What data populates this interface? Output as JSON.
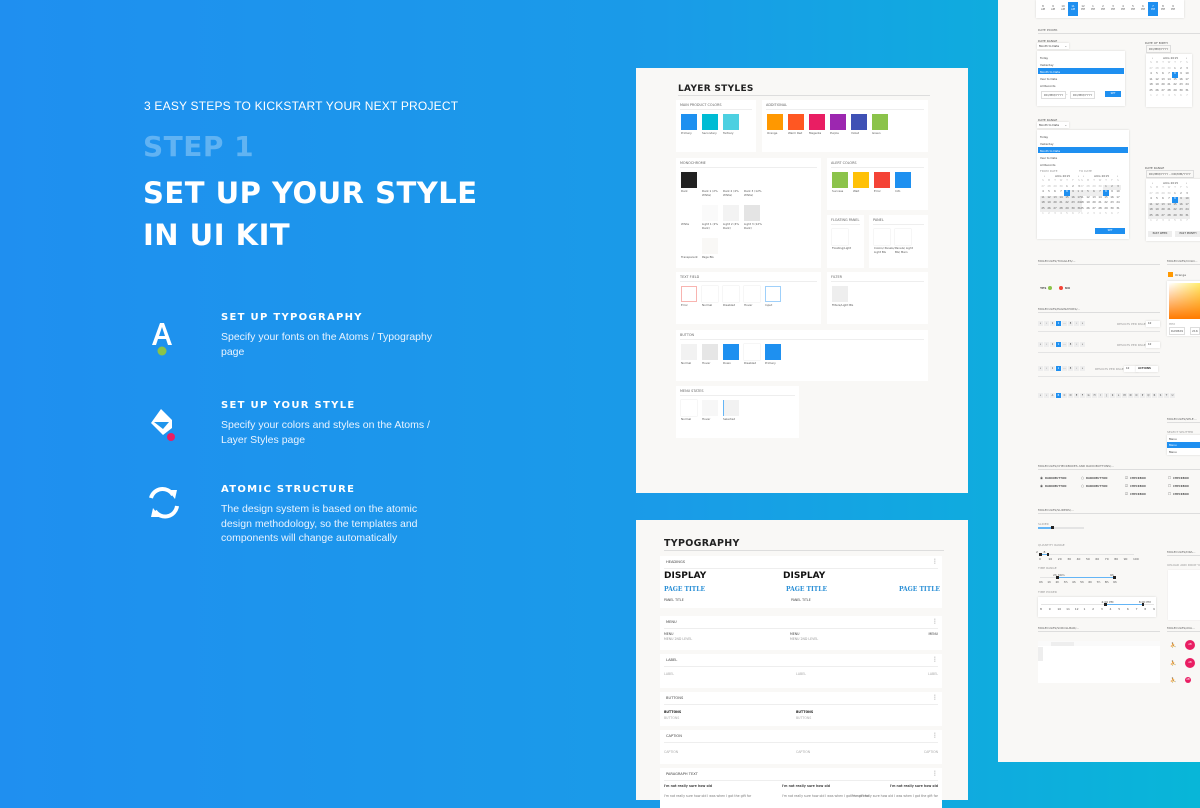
{
  "hero": {
    "tagline": "3 EASY STEPS TO KICKSTART YOUR NEXT PROJECT",
    "step": "STEP 1",
    "title_line1": "SET UP YOUR STYLE",
    "title_line2": "IN UI KIT"
  },
  "features": [
    {
      "icon": "typography-letter-icon",
      "title": "SET UP TYPOGRAPHY",
      "description": "Specify your fonts on the Atoms / Typography page",
      "dot_color": "#8BC34A"
    },
    {
      "icon": "paint-bucket-icon",
      "title": "SET UP YOUR STYLE",
      "description": "Specify your colors and styles on the Atoms / Layer Styles page",
      "dot_color": "#E91E63"
    },
    {
      "icon": "sync-arrows-icon",
      "title": "ATOMIC STRUCTURE",
      "description": "The design system is based on the atomic design methodology, so the templates and components will change automatically"
    }
  ],
  "layer_styles": {
    "title": "LAYER STYLES",
    "main_product": {
      "title": "MAIN PRODUCT COLORS",
      "swatches": [
        {
          "label": "Primary",
          "color": "#1E90F0"
        },
        {
          "label": "Secondary",
          "color": "#00BCD4"
        },
        {
          "label": "Tertiary",
          "color": "#4DD0E1"
        }
      ]
    },
    "additional": {
      "title": "ADDITIONAL",
      "swatches": [
        {
          "label": "Orange",
          "color": "#FF9800"
        },
        {
          "label": "Warm Red",
          "color": "#FF5722"
        },
        {
          "label": "Magenta",
          "color": "#E91E63"
        },
        {
          "label": "Purple",
          "color": "#9C27B0"
        },
        {
          "label": "Violet",
          "color": "#3F51B5"
        },
        {
          "label": "Green",
          "color": "#8BC34A"
        }
      ]
    },
    "monochrome": {
      "title": "MONOCHROME",
      "swatches": [
        {
          "label": "Dark",
          "color": "#222222"
        },
        {
          "label": "Dark 1 (2% White)",
          "color": "#ffffff"
        },
        {
          "label": "Dark 2 (4% White)",
          "color": "#ffffff"
        },
        {
          "label": "Dark 3 (12% White)",
          "color": "#ffffff"
        },
        {
          "label": "White",
          "color": "#ffffff"
        },
        {
          "label": "Light 1 (2% Dark)",
          "color": "#FAFAFA"
        },
        {
          "label": "Light 2 (4% Dark)",
          "color": "#F3F3F3"
        },
        {
          "label": "Light 3 (12% Dark)",
          "color": "#E4E4E4"
        },
        {
          "label": "Transparent",
          "color": "#ffffff"
        },
        {
          "label": "Page BG",
          "color": "#F9F8F6"
        }
      ]
    },
    "alert": {
      "title": "ALERT COLORS",
      "swatches": [
        {
          "label": "Success",
          "color": "#8BC34A"
        },
        {
          "label": "Wait",
          "color": "#FFC107"
        },
        {
          "label": "Error",
          "color": "#F44336"
        },
        {
          "label": "Info",
          "color": "#1E90F0"
        }
      ]
    },
    "floating_panel": {
      "title": "FLOATING PANEL",
      "swatches": [
        {
          "label": "Floating/Light",
          "color": "#ffffff"
        }
      ]
    },
    "panel": {
      "title": "PANEL",
      "swatches": [
        {
          "label": "Colors/ Panels/ Light BG",
          "color": "#ffffff"
        },
        {
          "label": "Panels/ Light BG/ Main",
          "color": "#ffffff"
        }
      ]
    },
    "text_field": {
      "title": "TEXT FIELD",
      "swatches": [
        {
          "label": "Error",
          "color": "#ffffff",
          "border": "#F8B4B0"
        },
        {
          "label": "Normal",
          "color": "#ffffff"
        },
        {
          "label": "Disabled",
          "color": "#ffffff"
        },
        {
          "label": "Hover",
          "color": "#ffffff"
        },
        {
          "label": "Input",
          "color": "#ffffff",
          "border": "#9FD0FA"
        }
      ]
    },
    "filter": {
      "title": "FILTER",
      "swatches": [
        {
          "label": "Filters/Light BG",
          "color": "#EEEEEE"
        }
      ]
    },
    "button": {
      "title": "BUTTON",
      "swatches": [
        {
          "label": "Normal",
          "color": "#F2F2F2"
        },
        {
          "label": "Hover",
          "color": "#E6E6E6"
        },
        {
          "label": "Down",
          "color": "#1E90F0"
        },
        {
          "label": "Disabled",
          "color": "#ffffff"
        },
        {
          "label": "Primary",
          "color": "#1E90F0"
        }
      ]
    },
    "menu_states": {
      "title": "MENU STATES",
      "swatches": [
        {
          "label": "Normal",
          "color": "#ffffff"
        },
        {
          "label": "Hover",
          "color": "#F7F7F7"
        },
        {
          "label": "Selected",
          "color": "#F2F2F2",
          "border_left": "#64B5F6"
        }
      ]
    }
  },
  "typography": {
    "title": "TYPOGRAPHY",
    "headings": {
      "title": "HEADINGS",
      "display": "DISPLAY",
      "page_title": "PAGE TITLE",
      "panel_title": "PANEL TITLE"
    },
    "menu": {
      "title": "MENU",
      "item": "MENU",
      "second": "MENU 2ND LEVEL"
    },
    "label": {
      "title": "LABEL",
      "item": "LABEL"
    },
    "buttons": {
      "title": "BUTTONS",
      "item": "BUTTONS"
    },
    "caption": {
      "title": "CAPTION",
      "item": "CAPTION"
    },
    "paragraph": {
      "title": "PARAGRAPH TEXT",
      "bold": "I'm not really sure how old",
      "body": "I'm not really sure how old I was when I got the gift for"
    },
    "more_icon": "more-vertical-icon"
  },
  "components": {
    "time_strip": [
      {
        "n": "8",
        "p": "AM"
      },
      {
        "n": "9",
        "p": "AM"
      },
      {
        "n": "10",
        "p": "AM"
      },
      {
        "n": "11",
        "p": "AM",
        "selected": true
      },
      {
        "n": "12",
        "p": "PM"
      },
      {
        "n": "1",
        "p": "PM"
      },
      {
        "n": "2",
        "p": "PM"
      },
      {
        "n": "3",
        "p": "PM"
      },
      {
        "n": "4",
        "p": "PM"
      },
      {
        "n": "5",
        "p": "PM"
      },
      {
        "n": "6",
        "p": "PM"
      },
      {
        "n": "7",
        "p": "PM",
        "selected": true
      },
      {
        "n": "8",
        "p": "PM"
      },
      {
        "n": "9",
        "p": "PM"
      }
    ],
    "date_picker": {
      "title": "DATE PICKER",
      "date_range_label": "DATE RANGE",
      "date_of_birth_label": "DATE OF BIRTH",
      "dropdown_value": "Month to Date",
      "options": [
        "Today",
        "Yesterday",
        "Month to Date",
        "Year to Date",
        "All Records"
      ],
      "selected_option": "Month to Date",
      "placeholder": "DD/MM/YYYY",
      "range_placeholder": "DD/MM/YYYY – DD/MM/YYYY",
      "separator": "–",
      "set": "SET",
      "month": "AUG 2015",
      "from_date": "FROM DATE",
      "to_date": "TO DATE",
      "weekdays": [
        "S",
        "M",
        "T",
        "W",
        "T",
        "F",
        "S"
      ],
      "days": [
        "27",
        "28",
        "29",
        "30",
        "1",
        "2",
        "3",
        "4",
        "5",
        "6",
        "7",
        "8",
        "9",
        "10",
        "11",
        "12",
        "13",
        "14",
        "15",
        "16",
        "17",
        "18",
        "19",
        "20",
        "21",
        "22",
        "23",
        "24",
        "25",
        "26",
        "27",
        "28",
        "29",
        "30",
        "31",
        "1",
        "2",
        "3",
        "4",
        "5",
        "6",
        "7"
      ],
      "selected_day": "8",
      "past_week": "PAST WEEK",
      "past_month": "PAST MONTH"
    },
    "toggles": {
      "title": "MOLECULES/TOGGLES/...",
      "yes": "YES",
      "no": "NO",
      "yes_color": "#8BC34A",
      "no_color": "#F44336"
    },
    "color_picker": {
      "title": "MOLECULES/COLO...",
      "value": "Orange",
      "hex_label": "HEX",
      "hex": "DA5B29",
      "r": "216",
      "color": "#FF9800"
    },
    "paginators": {
      "title": "MOLECULES/PAGINATORS/...",
      "pages": [
        "«",
        "‹",
        "1",
        "2",
        "…",
        "8",
        "›",
        "»"
      ],
      "selected": "2",
      "results_label": "RESULTS PER PAGE",
      "results_value": "10",
      "actions": "ACTIONS",
      "alphabet": [
        "«",
        "‹",
        "A",
        "B",
        "C",
        "D",
        "E",
        "F",
        "G",
        "H",
        "I",
        "J",
        "K",
        "L",
        "M",
        "N",
        "O",
        "P",
        "Q",
        "R",
        "S",
        "T",
        "U"
      ],
      "alpha_selected": "B"
    },
    "select": {
      "title": "MOLECULES/SELE...",
      "label": "SELECT SPLITTER",
      "items": [
        "Menu",
        "Menu",
        "Menu"
      ],
      "selected_index": 1
    },
    "checkboxes": {
      "title": "MOLECULES/CHECKBOXES AND RADIOBUTTONS/...",
      "radio": "RADIOBUTTON",
      "checkbox": "CHECKBOX"
    },
    "sliders": {
      "title": "MOLECULES/SLIDERS/...",
      "slider_label": "SLIDER",
      "slider_value": 0.3,
      "quantity_label": "QUANTITY RANGE",
      "quantity_ticks": [
        "0",
        "10",
        "20",
        "30",
        "40",
        "50",
        "60",
        "70",
        "80",
        "90",
        "100"
      ],
      "quantity_low": "2",
      "quantity_high": "8",
      "time_range_label": "TIME RANGE",
      "time_range_ticks": [
        "0h",
        "1h",
        "2h",
        "3h",
        "4h",
        "5h",
        "6h",
        "7h",
        "8h",
        "9h"
      ],
      "time_low": "2h 30m",
      "time_high": "9h",
      "time_picker_label": "TIME PICKER",
      "time_picker_ticks": [
        "8",
        "9",
        "10",
        "11",
        "12",
        "1",
        "2",
        "3",
        "4",
        "5",
        "6",
        "7",
        "8",
        "9"
      ],
      "tp_low": "4:00 PM",
      "tp_high": "8:00 PM"
    },
    "scrollbar": {
      "title": "MOLECULES/SCROLLBAR/..."
    },
    "dragdrop": {
      "title": "MOLECULES/DRA...",
      "label": "UPLOAD AND DROP YOU..."
    },
    "avatars": {
      "title": "MOLECULES/AVA...",
      "initials": "AB",
      "color": "#E91E63"
    }
  },
  "colors": {
    "accent": "#1E90F0",
    "bg_left": "#1F8FF0",
    "bg_right": "#08B6D8"
  }
}
